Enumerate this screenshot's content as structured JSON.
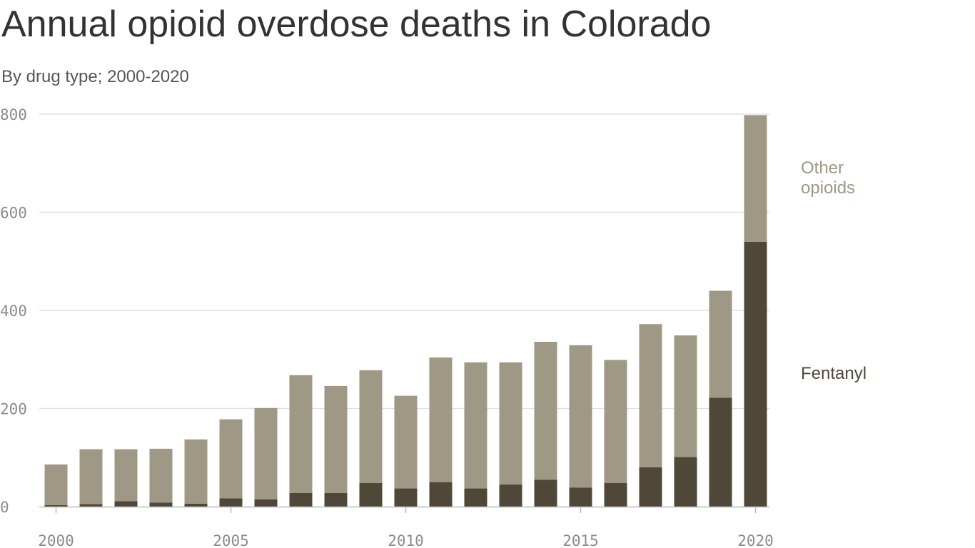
{
  "chart_data": {
    "type": "bar",
    "stacked": true,
    "title": "Annual opioid overdose deaths in Colorado",
    "subtitle": "By drug type; 2000-2020",
    "x": [
      2000,
      2001,
      2002,
      2003,
      2004,
      2005,
      2006,
      2007,
      2008,
      2009,
      2010,
      2011,
      2012,
      2013,
      2014,
      2015,
      2016,
      2017,
      2018,
      2019,
      2020
    ],
    "x_ticks": [
      "2000",
      "2005",
      "2010",
      "2015",
      "2020"
    ],
    "y_ticks": [
      "0",
      "200",
      "400",
      "600",
      "800"
    ],
    "ylim": [
      0,
      800
    ],
    "grid": true,
    "series": [
      {
        "name": "Fentanyl",
        "color": "#4f4838",
        "values": [
          3,
          5,
          11,
          8,
          6,
          17,
          15,
          28,
          28,
          48,
          37,
          50,
          37,
          45,
          55,
          39,
          48,
          80,
          101,
          222,
          540
        ]
      },
      {
        "name": "Other opioids",
        "color": "#9e9884",
        "values": [
          83,
          112,
          106,
          110,
          131,
          161,
          186,
          240,
          218,
          230,
          189,
          254,
          257,
          249,
          281,
          290,
          251,
          292,
          248,
          218,
          258
        ]
      }
    ],
    "legend": [
      {
        "line1": "Other",
        "line2": "opioids",
        "color": "#9e9884"
      },
      {
        "line1": "Fentanyl",
        "line2": "",
        "color": "#4f4838"
      }
    ]
  }
}
